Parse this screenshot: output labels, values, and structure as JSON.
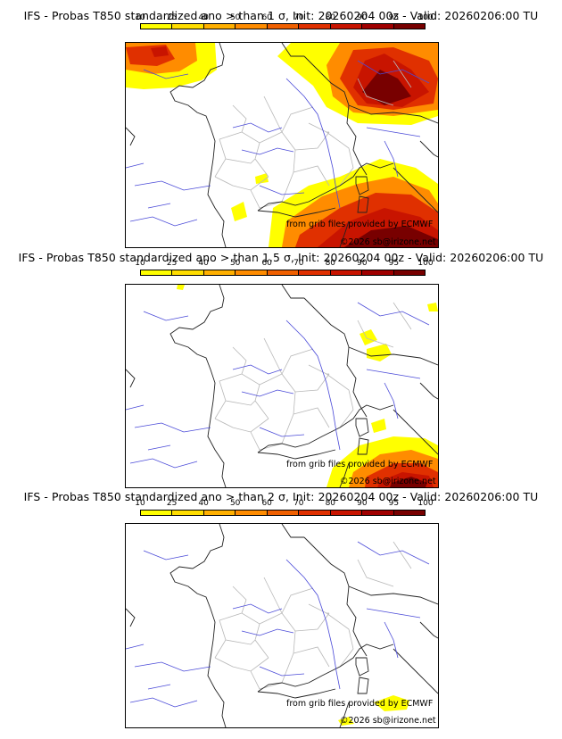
{
  "colors": {
    "rivers": "#4a4ad8",
    "borders": "#b8b8b8",
    "coast": "#222222",
    "scale": [
      "#ffff00",
      "#ffdd00",
      "#ffb000",
      "#ff8c00",
      "#f06000",
      "#e03000",
      "#c81400",
      "#a00000",
      "#780000"
    ]
  },
  "legend": {
    "ticks": [
      "10",
      "25",
      "40",
      "50",
      "60",
      "70",
      "80",
      "90",
      "95",
      "100"
    ]
  },
  "panels": [
    {
      "title": "IFS - Probas T850  standardized ano > than 1 σ, Init: 20260204 00z - Valid: 20260206:00 TU",
      "credit1": "from grib files provided by ECMWF",
      "credit2": "©2026 sb@irizone.net"
    },
    {
      "title": "IFS - Probas T850  standardized ano > than 1.5 σ, Init: 20260204 00z - Valid: 20260206:00 TU",
      "credit1": "from grib files provided by ECMWF",
      "credit2": "©2026 sb@irizone.net"
    },
    {
      "title": "IFS - Probas T850  standardized ano > than 2 σ, Init: 20260204 00z - Valid: 20260206:00 TU",
      "credit1": "from grib files provided by ECMWF",
      "credit2": "©2026 sb@irizone.net"
    }
  ]
}
